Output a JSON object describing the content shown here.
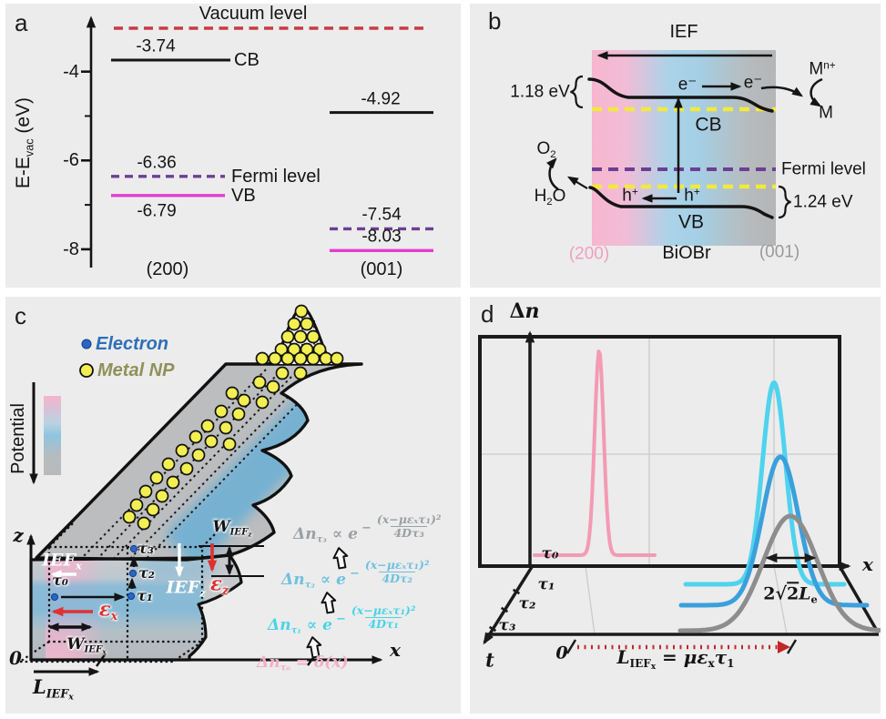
{
  "page": {
    "background": "#ffffff",
    "panel_background": "#ececec"
  },
  "panel_a": {
    "label": "a",
    "y_axis_label": [
      {
        "t": "E-E"
      },
      {
        "t": "vac",
        "s": "sub"
      },
      {
        "t": " (eV)"
      }
    ],
    "chart_data": {
      "type": "line",
      "subtype": "energy-level-diagram",
      "ylabel": "E-E_vac (eV)",
      "yticks": [
        -4,
        -6,
        -8
      ],
      "ylim": [
        -8.6,
        -3.1
      ],
      "vacuum_label": "Vacuum level",
      "level_names": {
        "cb": "CB",
        "fermi": "Fermi level",
        "vb": "VB"
      },
      "facets": [
        {
          "name": "(200)",
          "cb": -3.74,
          "fermi": -6.36,
          "vb": -6.79
        },
        {
          "name": "(001)",
          "cb": -4.92,
          "fermi": -7.54,
          "vb": -8.03
        }
      ],
      "colors": {
        "cb": "#151515",
        "fermi": "#6b3f94",
        "vb": "#e13ecf",
        "vacuum": "#c63b41"
      }
    }
  },
  "panel_b": {
    "label": "b",
    "ief_label": "IEF",
    "electron_1": "e⁻",
    "electron_2": "e⁻",
    "cb_label": "CB",
    "vb_label": "VB",
    "fermi_label": "Fermi level",
    "metal_ion": [
      {
        "t": "M"
      },
      {
        "t": "n+",
        "s": "sup"
      }
    ],
    "metal": "M",
    "o2": [
      {
        "t": "O"
      },
      {
        "t": "2",
        "s": "sub"
      }
    ],
    "h2o": [
      {
        "t": "H"
      },
      {
        "t": "2",
        "s": "sub"
      },
      {
        "t": "O"
      }
    ],
    "hole_1": [
      {
        "t": "h"
      },
      {
        "t": "+",
        "s": "sup"
      }
    ],
    "hole_2": [
      {
        "t": "h"
      },
      {
        "t": "+",
        "s": "sup"
      }
    ],
    "cb_offset": "1.18 eV",
    "vb_offset": "1.24 eV",
    "facet_left": "(200)",
    "material": "BiOBr",
    "facet_right": "(001)",
    "colors": {
      "facet_left": "#ef9fc0",
      "facet_right": "#9a9a9b",
      "fermi": "#6b3f94",
      "band_edge_dash": "#f2ea3a"
    }
  },
  "panel_c": {
    "label": "c",
    "legend": {
      "electron": "Electron",
      "metal_np": "Metal NP"
    },
    "potential_label": "Potential",
    "z_label": "z",
    "x_label": "x",
    "origin_label": "0",
    "tau_labels": [
      "τ₀",
      "τ₁",
      "τ₂",
      "τ₃"
    ],
    "ief_x": [
      {
        "t": "IEF",
        "s": "i"
      },
      {
        "t": "x",
        "s": "sub"
      }
    ],
    "eps_x": [
      {
        "t": "ε",
        "s": "i"
      },
      {
        "t": "x",
        "s": "sub"
      }
    ],
    "w_ief_x": [
      {
        "t": "W",
        "s": "i"
      },
      {
        "t": "IEF",
        "s": "sub"
      },
      {
        "t": "x",
        "s": "ssub"
      }
    ],
    "l_ief_x": [
      {
        "t": "L",
        "s": "i"
      },
      {
        "t": "IEF",
        "s": "sub"
      },
      {
        "t": "x",
        "s": "ssub"
      }
    ],
    "ief_z": [
      {
        "t": "IEF",
        "s": "i"
      },
      {
        "t": "z",
        "s": "sub"
      }
    ],
    "eps_z": [
      {
        "t": "ε",
        "s": "i"
      },
      {
        "t": "z",
        "s": "sub"
      }
    ],
    "w_ief_z": [
      {
        "t": "W",
        "s": "i"
      },
      {
        "t": "IEF",
        "s": "sub"
      },
      {
        "t": "z",
        "s": "ssub"
      }
    ],
    "equations": [
      {
        "id": "tau3",
        "color": "#9aa0a4",
        "lhs": [
          {
            "t": "Δn",
            "s": "i"
          },
          {
            "t": "τ₃",
            "s": "sub"
          },
          {
            "t": " ∝ "
          },
          {
            "t": "e",
            "s": "i"
          }
        ],
        "minus": "−",
        "num": "(x−μεₓτ₁)²",
        "den": "4Dτ₃"
      },
      {
        "id": "tau2",
        "color": "#6fc0e0",
        "lhs": [
          {
            "t": "Δn",
            "s": "i"
          },
          {
            "t": "τ₂",
            "s": "sub"
          },
          {
            "t": " ∝ "
          },
          {
            "t": "e",
            "s": "i"
          }
        ],
        "minus": "−",
        "num": "(x−μεₓτ₁)²",
        "den": "4Dτ₂"
      },
      {
        "id": "tau1",
        "color": "#49d4e6",
        "lhs": [
          {
            "t": "Δn",
            "s": "i"
          },
          {
            "t": "τ₁",
            "s": "sub"
          },
          {
            "t": " ∝ "
          },
          {
            "t": "e",
            "s": "i"
          }
        ],
        "minus": "−",
        "num": "(x−μεₓτ₁)²",
        "den": "4Dτ₁"
      },
      {
        "id": "tau0",
        "color": "#f3aec7",
        "lhs": [
          {
            "t": "Δn",
            "s": "i"
          },
          {
            "t": "τ₀",
            "s": "sub"
          },
          {
            "t": " = "
          },
          {
            "t": "δ",
            "s": "i"
          },
          {
            "t": "(x)"
          }
        ]
      }
    ],
    "np_bump": [
      [
        325,
        16
      ],
      [
        317,
        30
      ],
      [
        331,
        30
      ],
      [
        310,
        44
      ],
      [
        324,
        44
      ],
      [
        338,
        44
      ],
      [
        303,
        58
      ],
      [
        317,
        58
      ],
      [
        331,
        58
      ],
      [
        345,
        58
      ],
      [
        282,
        68
      ],
      [
        296,
        68
      ],
      [
        310,
        68
      ],
      [
        324,
        68
      ],
      [
        338,
        68
      ],
      [
        352,
        68
      ],
      [
        364,
        68
      ]
    ],
    "np_surface": [
      [
        304,
        84
      ],
      [
        324,
        84
      ],
      [
        279,
        94
      ],
      [
        294,
        99
      ],
      [
        249,
        106
      ],
      [
        262,
        114
      ],
      [
        282,
        116
      ],
      [
        237,
        126
      ],
      [
        256,
        129
      ],
      [
        222,
        142
      ],
      [
        242,
        144
      ],
      [
        209,
        154
      ],
      [
        226,
        159
      ],
      [
        246,
        162
      ],
      [
        194,
        169
      ],
      [
        212,
        174
      ],
      [
        179,
        184
      ],
      [
        199,
        189
      ],
      [
        166,
        199
      ],
      [
        184,
        204
      ],
      [
        154,
        214
      ],
      [
        172,
        219
      ],
      [
        144,
        229
      ],
      [
        162,
        234
      ],
      [
        136,
        242
      ],
      [
        152,
        249
      ]
    ],
    "colors": {
      "electron": "#2b66c4",
      "metal_np": "#f2ef52",
      "field_arrow": "#e03131",
      "potential_top": "#f5b3cb",
      "potential_mid": "#8fc4de",
      "potential_bottom": "#b9b9ba"
    }
  },
  "panel_d": {
    "label": "d",
    "dn_label": [
      {
        "t": "Δ"
      },
      {
        "t": "n",
        "s": "i"
      }
    ],
    "x_label": "x",
    "t_label": "t",
    "origin_label": "0",
    "tau_labels": [
      "τ₀",
      "τ₁",
      "τ₂",
      "τ₃"
    ],
    "width_label": [
      {
        "t": "2"
      },
      {
        "t": "√"
      },
      {
        "t": "2",
        "s": "rad"
      },
      {
        "t": "L",
        "s": "i"
      },
      {
        "t": "e",
        "s": "sub"
      }
    ],
    "drift_label": [
      {
        "t": "L",
        "s": "i"
      },
      {
        "t": "IEF",
        "s": "sub"
      },
      {
        "t": "x",
        "s": "ssub"
      },
      {
        "t": " = "
      },
      {
        "t": "με",
        "s": "i"
      },
      {
        "t": "x",
        "s": "sub"
      },
      {
        "t": "τ",
        "s": "i"
      },
      {
        "t": "1",
        "s": "sub"
      }
    ],
    "chart_data": {
      "type": "line",
      "description": "3D schematic of carrier distribution Δn versus position x at successive times τ0–τ3",
      "axes": {
        "vertical": "Δn",
        "horizontal": "x",
        "depth": "t"
      },
      "depth_ticks": [
        "τ₀",
        "τ₁",
        "τ₂",
        "τ₃"
      ],
      "series": [
        {
          "name": "τ₀",
          "color": "#f49ab5",
          "x_center": 0,
          "sigma": 0.045,
          "height": 1.0
        },
        {
          "name": "τ₁",
          "color": "#4fd3ee",
          "x_center": 1.0,
          "sigma": 0.115,
          "height": 0.985
        },
        {
          "name": "τ₂",
          "color": "#3aa0dc",
          "x_center": 1.035,
          "sigma": 0.18,
          "height": 0.725
        },
        {
          "name": "τ₃",
          "color": "#8d8d8d",
          "x_center": 1.09,
          "sigma": 0.27,
          "height": 0.56
        }
      ],
      "x_unit": "L_IEFx (drift length)",
      "annotations": [
        "2√2Lₑ",
        "L_IEFₓ = μεₓτ₁",
        "0"
      ]
    }
  }
}
